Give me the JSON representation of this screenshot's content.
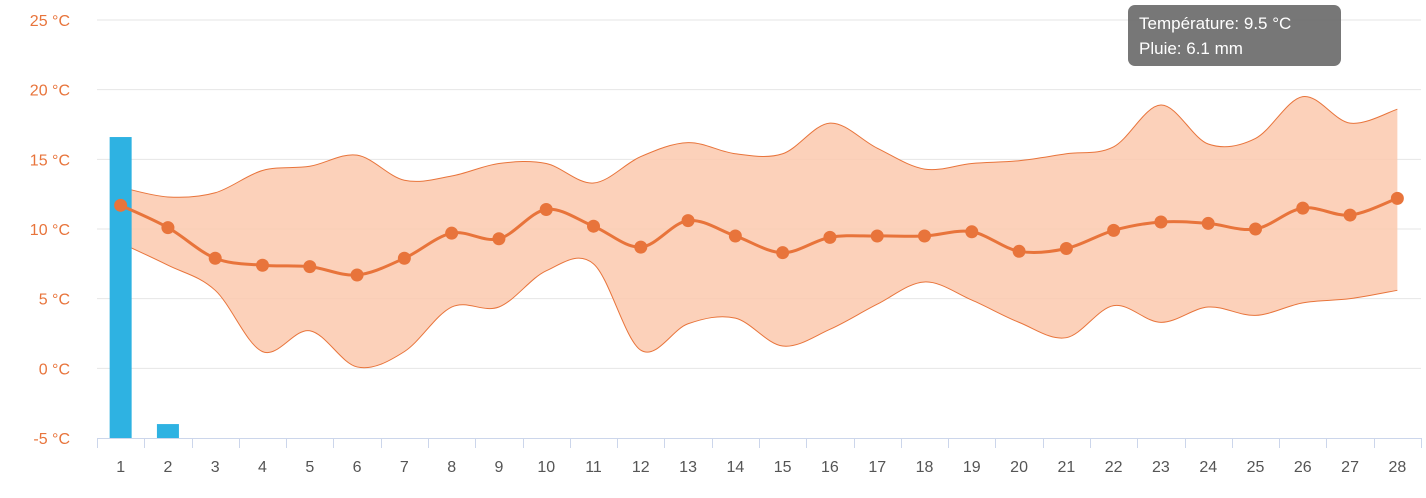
{
  "chart_data": {
    "type": "area",
    "x": [
      1,
      2,
      3,
      4,
      5,
      6,
      7,
      8,
      9,
      10,
      11,
      12,
      13,
      14,
      15,
      16,
      17,
      18,
      19,
      20,
      21,
      22,
      23,
      24,
      25,
      26,
      27,
      28
    ],
    "ylim": [
      -5,
      25
    ],
    "y_ticks": [
      "25 °C",
      "20 °C",
      "15 °C",
      "10 °C",
      "5 °C",
      "0 °C",
      "-5 °C"
    ],
    "y_tick_values": [
      25,
      20,
      15,
      10,
      5,
      0,
      -5
    ],
    "grid": true,
    "series": [
      {
        "kind": "line",
        "color": "#e8743b",
        "values": [
          11.7,
          10.1,
          7.9,
          7.4,
          7.3,
          6.7,
          7.9,
          9.7,
          9.3,
          11.4,
          10.2,
          8.7,
          10.6,
          9.5,
          8.3,
          9.4,
          9.5,
          9.5,
          9.8,
          8.4,
          8.6,
          9.9,
          10.5,
          10.4,
          10.0,
          11.5,
          11.0,
          12.2
        ]
      },
      {
        "kind": "range",
        "color": "#fbc9ae",
        "high": [
          13.0,
          12.3,
          12.6,
          14.2,
          14.5,
          15.3,
          13.5,
          13.8,
          14.7,
          14.7,
          13.3,
          15.2,
          16.2,
          15.4,
          15.4,
          17.6,
          15.8,
          14.3,
          14.7,
          14.9,
          15.4,
          15.9,
          18.9,
          16.1,
          16.5,
          19.5,
          17.6,
          18.6
        ],
        "low": [
          9.0,
          7.4,
          5.6,
          1.2,
          2.7,
          0.1,
          1.2,
          4.4,
          4.4,
          7.0,
          7.5,
          1.3,
          3.2,
          3.6,
          1.6,
          2.8,
          4.6,
          6.2,
          4.9,
          3.3,
          2.2,
          4.5,
          3.3,
          4.4,
          3.8,
          4.7,
          5.0,
          5.6
        ]
      },
      {
        "kind": "bar",
        "color": "#2eb2e2",
        "values": [
          16.6,
          -4.0,
          null,
          null,
          null,
          null,
          null,
          null,
          null,
          null,
          null,
          null,
          null,
          null,
          null,
          null,
          null,
          null,
          null,
          null,
          null,
          null,
          null,
          null,
          null,
          null,
          null,
          null
        ]
      }
    ]
  },
  "tooltip": {
    "line1": "Température: 9.5 °C",
    "line2": "Pluie: 6.1 mm"
  }
}
